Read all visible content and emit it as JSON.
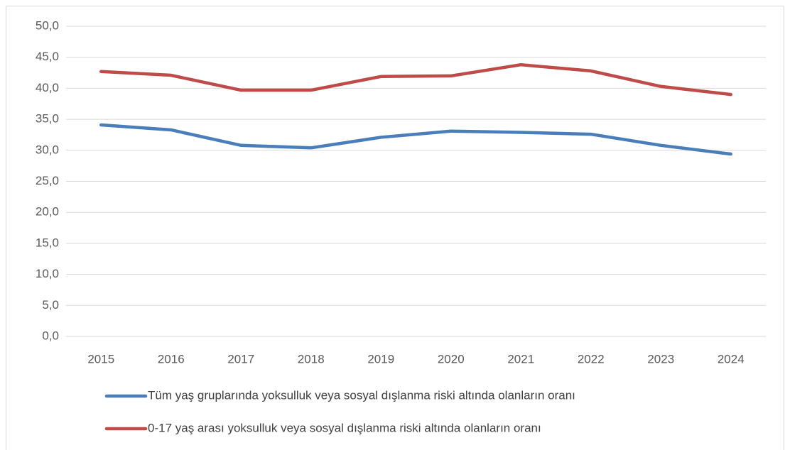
{
  "chart_data": {
    "type": "line",
    "categories": [
      "2015",
      "2016",
      "2017",
      "2018",
      "2019",
      "2020",
      "2021",
      "2022",
      "2023",
      "2024"
    ],
    "series": [
      {
        "name": "Tüm yaş gruplarında yoksulluk veya sosyal dışlanma riski altında olanların oranı",
        "color": "#4a7ebb",
        "values": [
          34.1,
          33.3,
          30.8,
          30.4,
          32.1,
          33.1,
          32.9,
          32.6,
          30.8,
          29.4
        ]
      },
      {
        "name": "0-17 yaş arası yoksulluk veya sosyal dışlanma riski altında olanların oranı",
        "color": "#be4b48",
        "values": [
          42.7,
          42.1,
          39.7,
          39.7,
          41.9,
          42.0,
          43.8,
          42.8,
          40.3,
          39.0
        ]
      }
    ],
    "ylim": [
      0,
      50
    ],
    "yticks": [
      {
        "value": 0,
        "label": "0,0"
      },
      {
        "value": 5,
        "label": "5,0"
      },
      {
        "value": 10,
        "label": "10,0"
      },
      {
        "value": 15,
        "label": "15,0"
      },
      {
        "value": 20,
        "label": "20,0"
      },
      {
        "value": 25,
        "label": "25,0"
      },
      {
        "value": 30,
        "label": "30,0"
      },
      {
        "value": 35,
        "label": "35,0"
      },
      {
        "value": 40,
        "label": "40,0"
      },
      {
        "value": 45,
        "label": "45,0"
      },
      {
        "value": 50,
        "label": "50,0"
      }
    ],
    "grid": true,
    "legend": "bottom"
  }
}
